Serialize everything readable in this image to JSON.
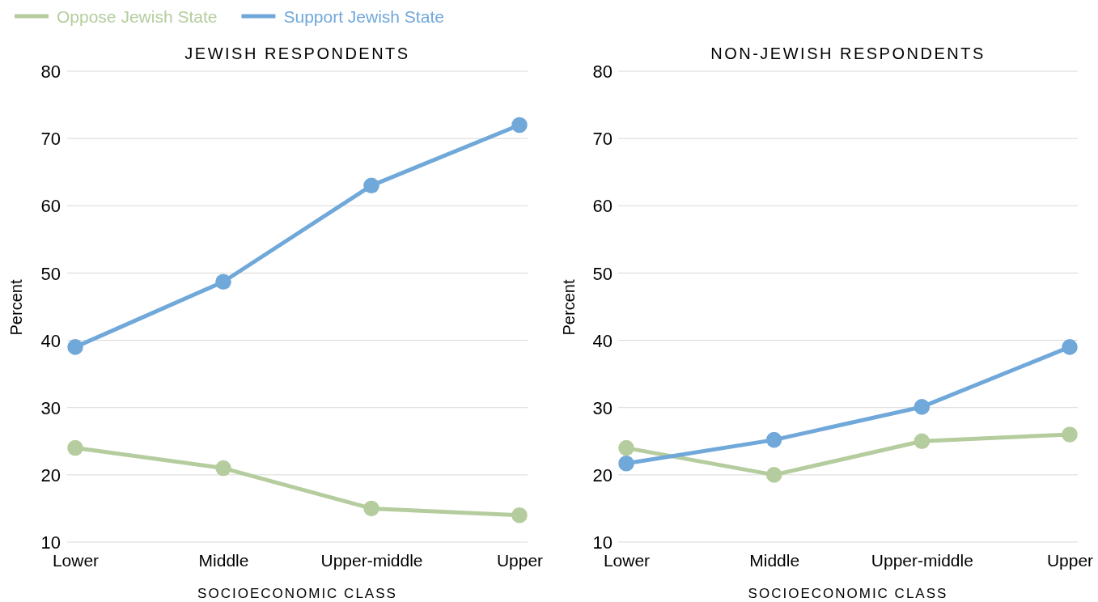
{
  "chart_data": [
    {
      "type": "line",
      "title": "JEWISH RESPONDENTS",
      "xlabel": "SOCIOECONOMIC CLASS",
      "ylabel": "Percent",
      "categories": [
        "Lower",
        "Middle",
        "Upper-middle",
        "Upper"
      ],
      "series": [
        {
          "name": "Oppose Jewish State",
          "color": "#b5cd9e",
          "values": [
            24,
            21,
            15,
            14
          ]
        },
        {
          "name": "Support Jewish State",
          "color": "#70a8da",
          "values": [
            39,
            48.7,
            63,
            72
          ]
        }
      ],
      "ylim": [
        10,
        80
      ],
      "yticks": [
        10,
        20,
        30,
        40,
        50,
        60,
        70,
        80
      ],
      "grid": "y",
      "legend": "top left",
      "marker": "circle",
      "line_style": "solid"
    },
    {
      "type": "line",
      "title": "NON-JEWISH RESPONDENTS",
      "xlabel": "SOCIOECONOMIC CLASS",
      "ylabel": "Percent",
      "categories": [
        "Lower",
        "Middle",
        "Upper-middle",
        "Upper"
      ],
      "series": [
        {
          "color": "#b5cd9e",
          "values": [
            24,
            20,
            25,
            26
          ]
        },
        {
          "color": "#70a8da",
          "values": [
            21.7,
            25.2,
            30.1,
            39
          ]
        }
      ],
      "ylim": [
        10,
        80
      ],
      "yticks": [
        10,
        20,
        30,
        40,
        50,
        60,
        70,
        80
      ],
      "grid": "y",
      "marker": "circle",
      "line_style": "solid"
    }
  ]
}
